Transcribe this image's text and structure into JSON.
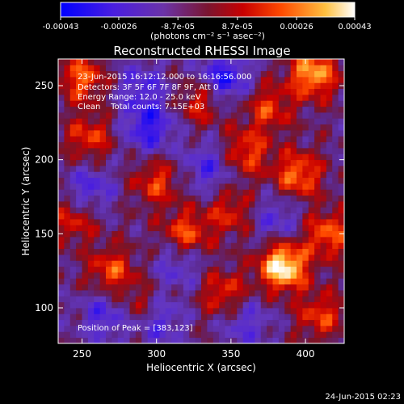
{
  "chart_data": {
    "type": "heatmap",
    "title": "Reconstructed RHESSI Image",
    "xlabel": "Heliocentric X (arcsec)",
    "ylabel": "Heliocentric Y (arcsec)",
    "xlim": [
      234,
      426
    ],
    "ylim": [
      76,
      268
    ],
    "xticks": [
      "250",
      "300",
      "350",
      "400"
    ],
    "xtick_values": [
      250,
      300,
      350,
      400
    ],
    "yticks": [
      "100",
      "150",
      "200",
      "250"
    ],
    "ytick_values": [
      100,
      150,
      200,
      250
    ],
    "colorbar": {
      "ticks": [
        "-0.00043",
        "-0.00026",
        "-8.7e-05",
        "8.7e-05",
        "0.00026",
        "0.00043"
      ],
      "tick_values": [
        -0.00043,
        -0.00026,
        -8.7e-05,
        8.7e-05,
        0.00026,
        0.00043
      ],
      "range": [
        -0.00043,
        0.00043
      ],
      "unit_label": "(photons cm⁻² s⁻¹ asec⁻²)"
    },
    "colors": {
      "min": "#0000ff",
      "low": "#6a3ac8",
      "mid_low": "#5a2b8e",
      "mid": "#a01010",
      "mid_high": "#ff3a00",
      "high": "#ffd050",
      "max": "#ffffff"
    },
    "annotations": [
      "23-Jun-2015 16:12:12.000 to 16:16:56.000",
      "Detectors: 3F 5F 6F 7F 8F 9F, Att 0",
      "Energy Range: 12.0 - 25.0 keV",
      "Clean    Total counts: 7.15E+03"
    ],
    "peak_label": "Position of Peak = [383,123]",
    "peak": [
      383,
      123
    ],
    "hotspots": [
      {
        "x": 385,
        "y": 128,
        "level": 1.0
      },
      {
        "x": 405,
        "y": 258,
        "level": 0.75
      },
      {
        "x": 250,
        "y": 255,
        "level": 0.55
      },
      {
        "x": 395,
        "y": 190,
        "level": 0.6
      },
      {
        "x": 320,
        "y": 150,
        "level": 0.55
      },
      {
        "x": 270,
        "y": 125,
        "level": 0.5
      },
      {
        "x": 330,
        "y": 240,
        "level": 0.45
      },
      {
        "x": 360,
        "y": 205,
        "level": 0.5
      },
      {
        "x": 300,
        "y": 185,
        "level": 0.45
      },
      {
        "x": 415,
        "y": 150,
        "level": 0.55
      },
      {
        "x": 345,
        "y": 110,
        "level": 0.45
      },
      {
        "x": 255,
        "y": 215,
        "level": 0.45
      },
      {
        "x": 375,
        "y": 235,
        "level": 0.45
      },
      {
        "x": 410,
        "y": 95,
        "level": 0.45
      },
      {
        "x": 290,
        "y": 100,
        "level": 0.4
      },
      {
        "x": 245,
        "y": 160,
        "level": 0.4
      },
      {
        "x": 350,
        "y": 165,
        "level": 0.4
      }
    ],
    "coldspots": [
      {
        "x": 345,
        "y": 255,
        "level": 0.9
      },
      {
        "x": 295,
        "y": 222,
        "level": 0.8
      },
      {
        "x": 300,
        "y": 92,
        "level": 0.7
      },
      {
        "x": 255,
        "y": 180,
        "level": 0.6
      },
      {
        "x": 335,
        "y": 195,
        "level": 0.6
      },
      {
        "x": 290,
        "y": 250,
        "level": 0.55
      },
      {
        "x": 380,
        "y": 160,
        "level": 0.5
      },
      {
        "x": 265,
        "y": 95,
        "level": 0.6
      },
      {
        "x": 360,
        "y": 90,
        "level": 0.5
      },
      {
        "x": 315,
        "y": 130,
        "level": 0.5
      }
    ]
  },
  "footer": {
    "timestamp": "24-Jun-2015 02:23"
  }
}
